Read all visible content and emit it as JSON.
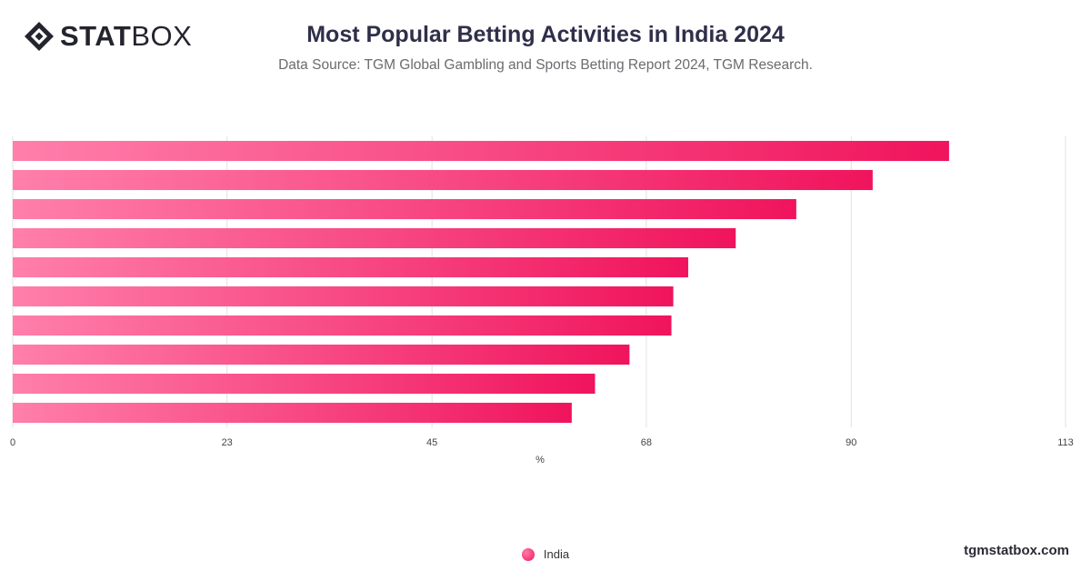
{
  "logo": {
    "strong": "STAT",
    "light": "BOX"
  },
  "header": {
    "title": "Most Popular Betting Activities in India 2024",
    "subtitle": "Data Source: TGM Global Gambling and Sports Betting Report 2024, TGM Research."
  },
  "footer": {
    "site": "tgmstatbox.com"
  },
  "colors": {
    "bar_start": "#ff7fab",
    "bar_end": "#f0145d",
    "grid": "#e2e2e6",
    "axis_text": "#444444"
  },
  "chart_data": {
    "type": "bar",
    "orientation": "horizontal",
    "title": "Most Popular Betting Activities in India 2024",
    "xlabel": "%",
    "ylabel": "",
    "xlim": [
      0,
      113
    ],
    "xticks": [
      0,
      23,
      45,
      68,
      90,
      113
    ],
    "grid": true,
    "legend": "bottom-center",
    "series": [
      {
        "name": "India",
        "values": [
          100.5,
          92.3,
          84.1,
          77.6,
          72.5,
          70.9,
          70.7,
          66.2,
          62.5,
          60.0
        ]
      }
    ]
  }
}
